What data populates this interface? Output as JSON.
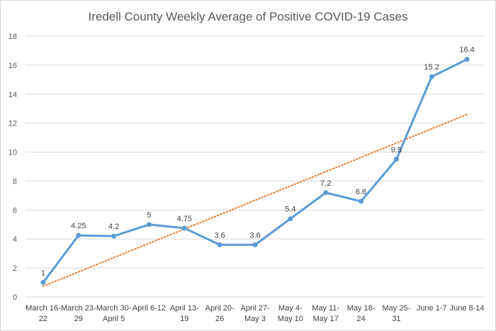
{
  "chart_data": {
    "type": "line",
    "title": "Iredell County Weekly Average of Positive COVID-19 Cases",
    "categories": [
      [
        "March 16-",
        "22"
      ],
      [
        "March 23-",
        "29"
      ],
      [
        "March 30-",
        "April 5"
      ],
      [
        "April 6-12",
        ""
      ],
      [
        "April 13-",
        "19"
      ],
      [
        "April 20-",
        "26"
      ],
      [
        "April 27-",
        "May 3"
      ],
      [
        "May 4-",
        "May 10"
      ],
      [
        "May 11-",
        "May 17"
      ],
      [
        "May 18-",
        "24"
      ],
      [
        "May 25-",
        "31"
      ],
      [
        "June 1-7",
        ""
      ],
      [
        "June 8-14",
        ""
      ]
    ],
    "values": [
      1,
      4.25,
      4.2,
      5,
      4.75,
      3.6,
      3.6,
      5.4,
      7.2,
      6.6,
      9.5,
      15.2,
      16.4
    ],
    "data_labels": [
      "1",
      "4.25",
      "4.2",
      "5",
      "4.75",
      "3.6",
      "3.6",
      "5.4",
      "7.2",
      "6.6",
      "9.5",
      "15.2",
      "16.4"
    ],
    "ylim": [
      0,
      18
    ],
    "yticks": [
      0,
      2,
      4,
      6,
      8,
      10,
      12,
      14,
      16,
      18
    ],
    "grid": true,
    "trendline": {
      "type": "linear",
      "style": "dotted"
    },
    "colors": {
      "series": "#5b9bd5",
      "trend": "#ed7d31",
      "grid": "#d9d9d9"
    }
  }
}
